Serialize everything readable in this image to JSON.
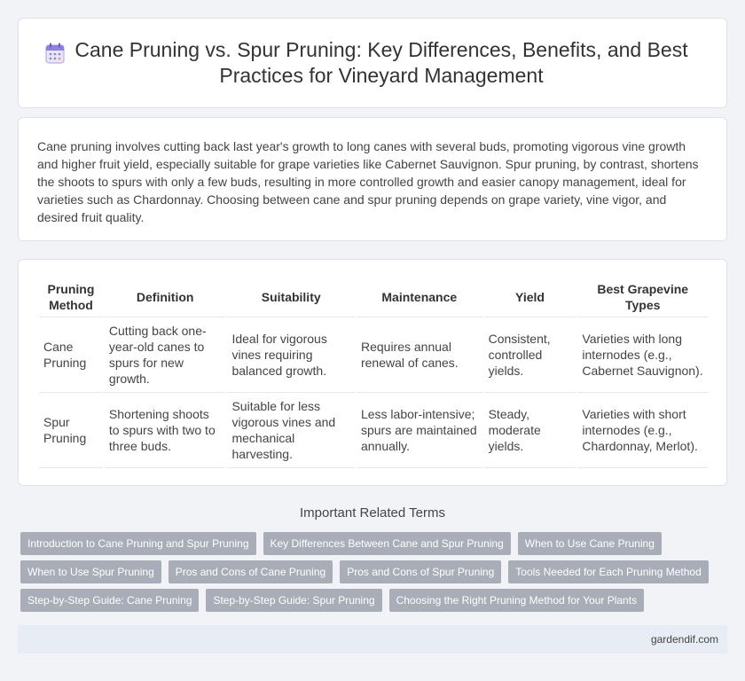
{
  "header": {
    "title": "Cane Pruning vs. Spur Pruning: Key Differences, Benefits, and Best Practices for Vineyard Management",
    "icon": "calendar-icon"
  },
  "intro": {
    "text": "Cane pruning involves cutting back last year's growth to long canes with several buds, promoting vigorous vine growth and higher fruit yield, especially suitable for grape varieties like Cabernet Sauvignon. Spur pruning, by contrast, shortens the shoots to spurs with only a few buds, resulting in more controlled growth and easier canopy management, ideal for varieties such as Chardonnay. Choosing between cane and spur pruning depends on grape variety, vine vigor, and desired fruit quality."
  },
  "table": {
    "headers": [
      "Pruning Method",
      "Definition",
      "Suitability",
      "Maintenance",
      "Yield",
      "Best Grapevine Types"
    ],
    "rows": [
      [
        "Cane Pruning",
        "Cutting back one-year-old canes to spurs for new growth.",
        "Ideal for vigorous vines requiring balanced growth.",
        "Requires annual renewal of canes.",
        "Consistent, controlled yields.",
        "Varieties with long internodes (e.g., Cabernet Sauvignon)."
      ],
      [
        "Spur Pruning",
        "Shortening shoots to spurs with two to three buds.",
        "Suitable for less vigorous vines and mechanical harvesting.",
        "Less labor-intensive; spurs are maintained annually.",
        "Steady, moderate yields.",
        "Varieties with short internodes (e.g., Chardonnay, Merlot)."
      ]
    ]
  },
  "related": {
    "title": "Important Related Terms",
    "rows": [
      [
        "Introduction to Cane Pruning and Spur Pruning",
        "Key Differences Between Cane and Spur Pruning",
        "When to Use Cane Pruning"
      ],
      [
        "When to Use Spur Pruning",
        "Pros and Cons of Cane Pruning",
        "Pros and Cons of Spur Pruning",
        "Tools Needed for Each Pruning Method"
      ],
      [
        "Step-by-Step Guide: Cane Pruning",
        "Step-by-Step Guide: Spur Pruning",
        "Choosing the Right Pruning Method for Your Plants"
      ]
    ]
  },
  "footer": {
    "site": "gardendif.com"
  },
  "colors": {
    "tag_bg": "#a9adb7",
    "footer_bg": "#e8ecf4",
    "page_bg": "#f2f3f6"
  }
}
